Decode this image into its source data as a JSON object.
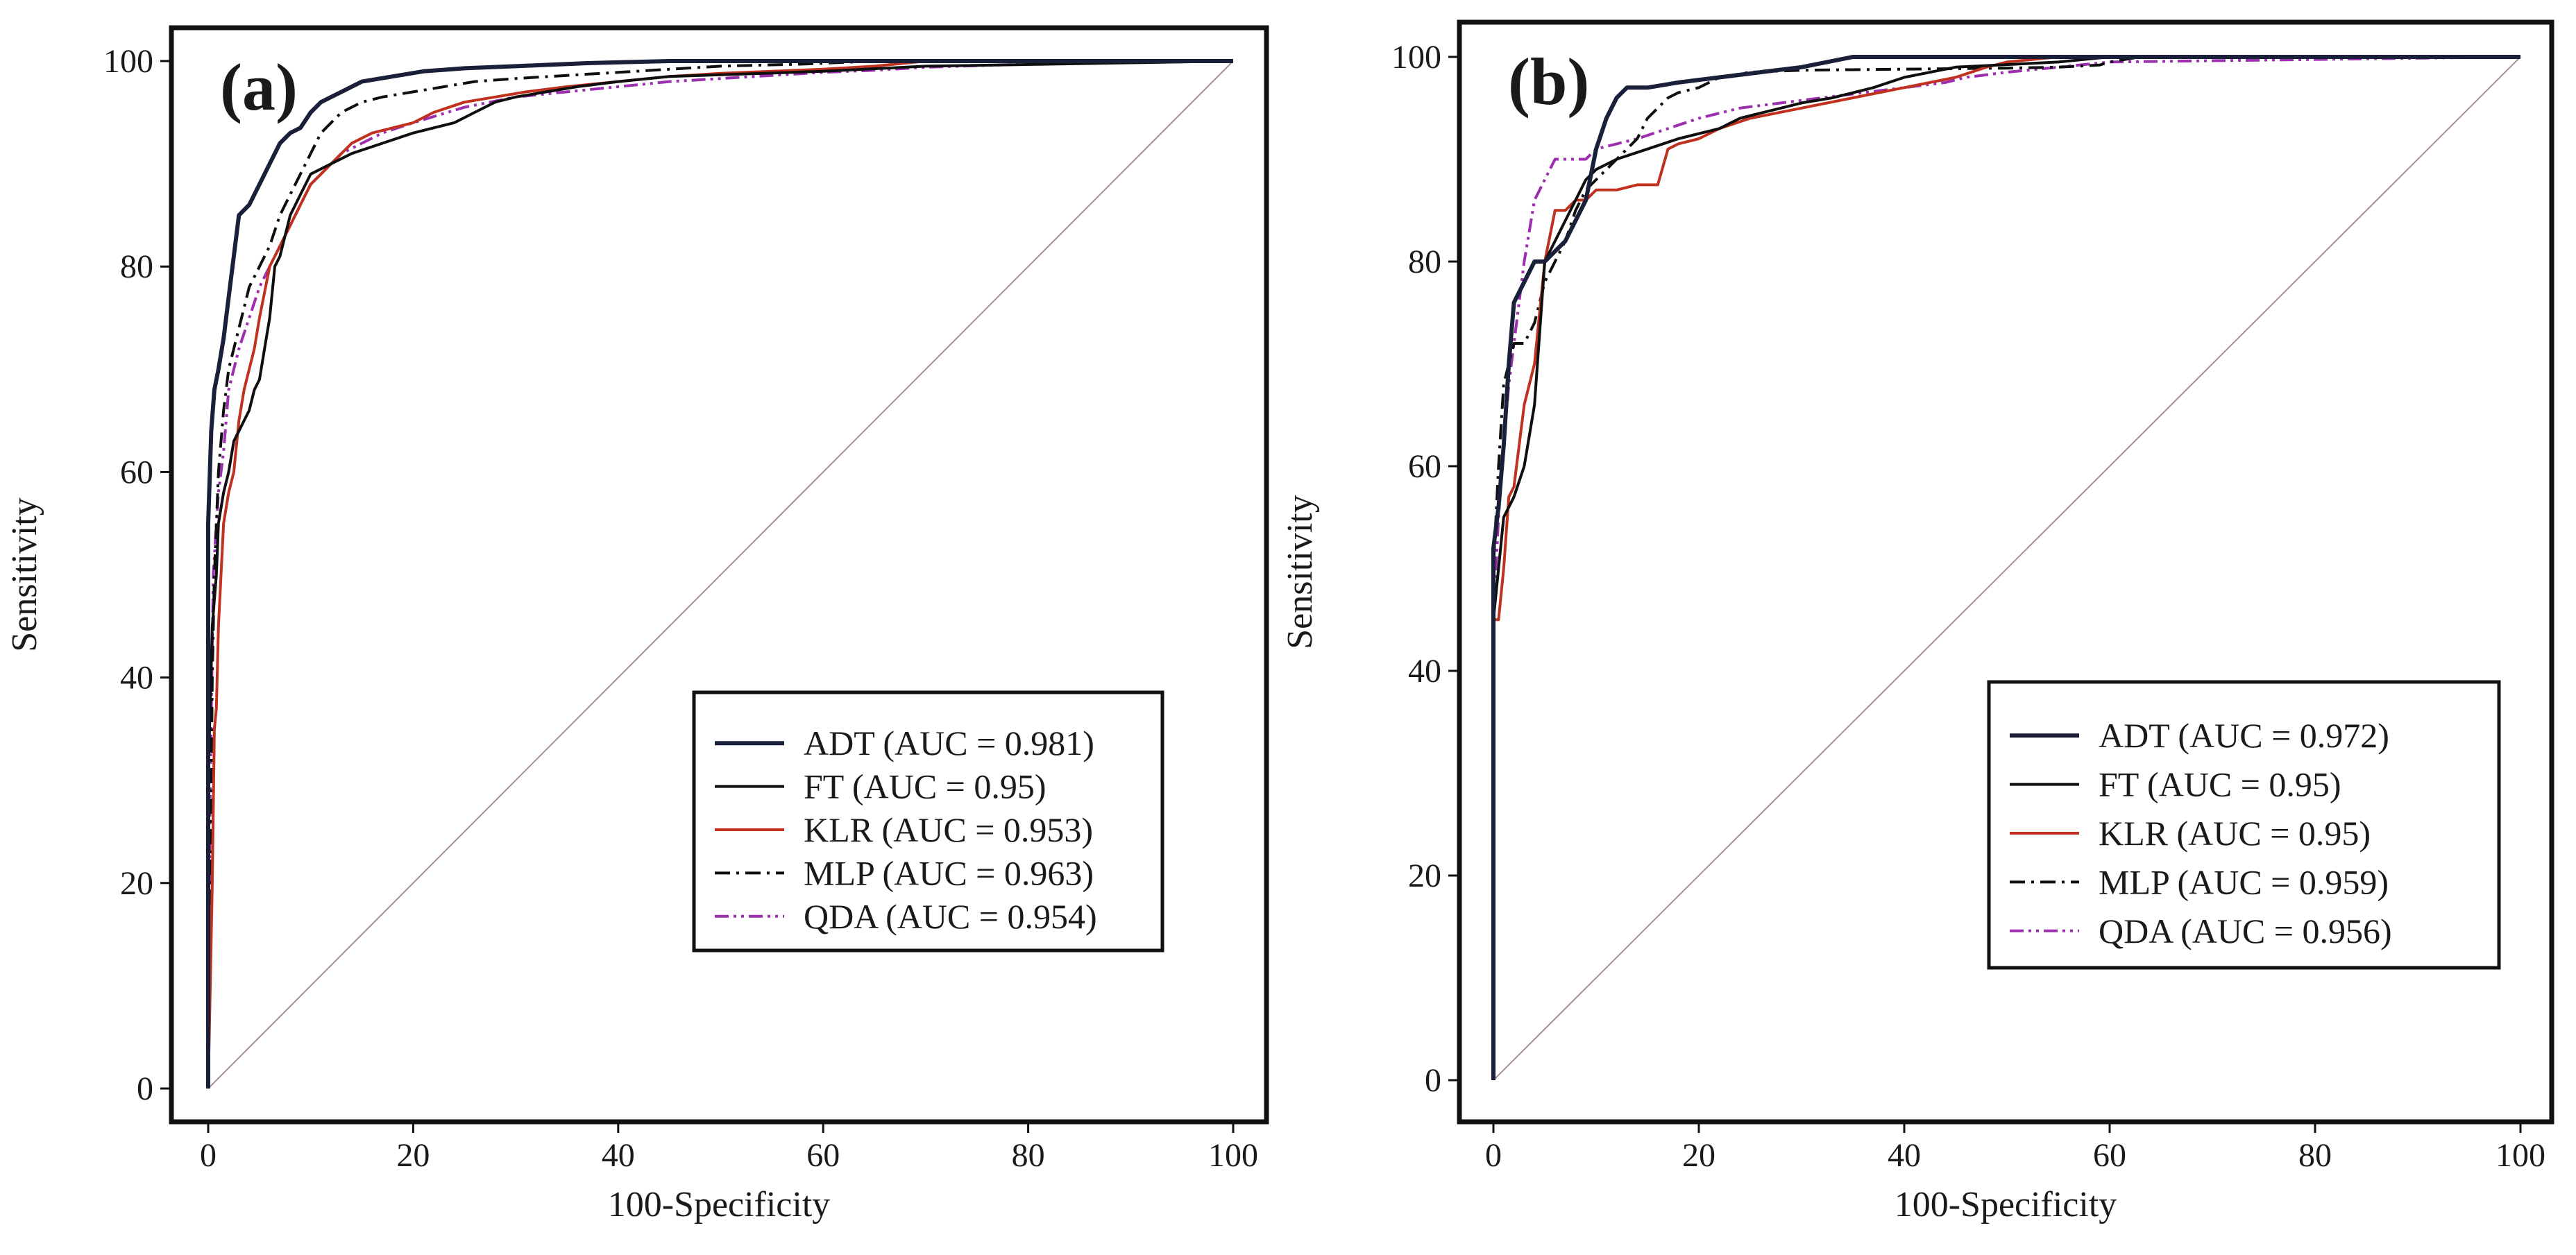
{
  "figure": {
    "background": "#ffffff"
  },
  "colors": {
    "adt": "#1a1f3a",
    "ft": "#0f0f0f",
    "klr": "#c0321f",
    "mlp": "#0f0f0f",
    "qda": "#9b2fae",
    "diagonal": "#a89090",
    "axis": "#111111"
  },
  "chart_data": [
    {
      "panel_label": "(a)",
      "type": "line",
      "title": "",
      "xlabel": "100-Specificity",
      "ylabel": "Sensitivity",
      "xlim": [
        0,
        100
      ],
      "ylim": [
        0,
        100
      ],
      "x_ticks": [
        0,
        20,
        40,
        60,
        80,
        100
      ],
      "y_ticks": [
        0,
        20,
        40,
        60,
        80,
        100
      ],
      "x_tick_labels": [
        "0",
        "20",
        "40",
        "60",
        "80",
        "100"
      ],
      "y_tick_labels": [
        "0",
        "20",
        "40",
        "60",
        "80",
        "100"
      ],
      "grid": false,
      "legend_position": "bottom-right",
      "reference_line": {
        "x": [
          0,
          100
        ],
        "y": [
          0,
          100
        ]
      },
      "series": [
        {
          "key": "adt",
          "name": "ADT (AUC = 0.981)",
          "style": "solid",
          "x": [
            0,
            0,
            0.3,
            0.6,
            1,
            1.5,
            2,
            3,
            4,
            5,
            6,
            7,
            8,
            9,
            10,
            11,
            12,
            13,
            15,
            18,
            21,
            25,
            30,
            37,
            45,
            100
          ],
          "y": [
            0,
            55,
            64,
            68,
            70,
            73,
            77,
            85,
            86,
            88,
            90,
            92,
            93,
            93.5,
            95,
            96,
            96.5,
            97,
            98,
            98.5,
            99,
            99.3,
            99.5,
            99.8,
            100,
            100
          ]
        },
        {
          "key": "ft",
          "name": "FT (AUC = 0.95)",
          "style": "solid",
          "x": [
            0,
            0,
            0.4,
            0.8,
            1,
            1.5,
            2,
            2.5,
            3,
            3.5,
            4,
            4.5,
            5,
            5.5,
            6,
            6.5,
            7,
            7.5,
            8,
            9,
            10,
            12,
            14,
            17,
            20,
            22,
            24,
            25,
            26,
            28,
            30,
            33,
            36,
            40,
            45,
            60,
            70,
            100
          ],
          "y": [
            0,
            30,
            45,
            50,
            55,
            58,
            60,
            63,
            64,
            65,
            66,
            68,
            69,
            72,
            75,
            80,
            81,
            83,
            85,
            87,
            89,
            90,
            91,
            92,
            93,
            93.5,
            94,
            94.5,
            95,
            96,
            96.5,
            97,
            97.5,
            98,
            98.5,
            99,
            99.5,
            100
          ]
        },
        {
          "key": "klr",
          "name": "KLR (AUC = 0.953)",
          "style": "solid",
          "x": [
            0,
            0.2,
            0.4,
            0.6,
            0.8,
            1,
            1.5,
            2,
            2.5,
            3,
            3.5,
            4,
            4.5,
            5,
            6,
            7,
            8,
            9,
            10,
            11,
            12,
            13,
            14,
            16,
            18,
            20,
            22,
            25,
            28,
            31,
            35,
            40,
            45,
            50,
            55,
            60,
            65,
            68,
            70,
            100
          ],
          "y": [
            0,
            10,
            20,
            35,
            37,
            45,
            55,
            58,
            60,
            65,
            68,
            70,
            72,
            75,
            80,
            82,
            84,
            86,
            88,
            89,
            90,
            91,
            92,
            93,
            93.5,
            94,
            95,
            96,
            96.5,
            97,
            97.5,
            98,
            98.5,
            98.8,
            99,
            99.2,
            99.5,
            99.8,
            100,
            100
          ]
        },
        {
          "key": "mlp",
          "name": "MLP (AUC = 0.963)",
          "style": "dashdot",
          "x": [
            0,
            0.2,
            0.4,
            0.6,
            1,
            1.5,
            2,
            3,
            4,
            5,
            6,
            7,
            8,
            9,
            10,
            11,
            12,
            13,
            14,
            15,
            17,
            20,
            23,
            26,
            30,
            35,
            40,
            45,
            50,
            58,
            65,
            100
          ],
          "y": [
            0,
            20,
            40,
            50,
            60,
            66,
            70,
            74,
            78,
            80,
            82,
            85,
            87,
            89,
            91,
            93,
            94,
            95,
            95.5,
            96,
            96.5,
            97,
            97.5,
            98,
            98.3,
            98.6,
            98.9,
            99.2,
            99.5,
            99.7,
            100,
            100
          ]
        },
        {
          "key": "qda",
          "name": "QDA (AUC = 0.954)",
          "style": "dashdotdot",
          "x": [
            0,
            0.2,
            0.5,
            0.8,
            1,
            1.5,
            2,
            3,
            4,
            5,
            6,
            7,
            8,
            9,
            10,
            11,
            12,
            13,
            15,
            17,
            20,
            25,
            30,
            35,
            40,
            45,
            50,
            55,
            60,
            65,
            70,
            80,
            100
          ],
          "y": [
            0,
            30,
            50,
            55,
            58,
            62,
            68,
            72,
            75,
            78,
            80,
            82,
            84,
            86,
            88,
            89,
            90,
            91,
            92,
            93,
            94,
            95.5,
            96.5,
            97,
            97.5,
            98,
            98.3,
            98.6,
            98.9,
            99.1,
            99.4,
            99.7,
            100
          ]
        }
      ]
    },
    {
      "panel_label": "(b)",
      "type": "line",
      "title": "",
      "xlabel": "100-Specificity",
      "ylabel": "Sensitivity",
      "xlim": [
        0,
        100
      ],
      "ylim": [
        0,
        100
      ],
      "x_ticks": [
        0,
        20,
        40,
        60,
        80,
        100
      ],
      "y_ticks": [
        0,
        20,
        40,
        60,
        80,
        100
      ],
      "x_tick_labels": [
        "0",
        "20",
        "40",
        "60",
        "80",
        "100"
      ],
      "y_tick_labels": [
        "0",
        "20",
        "40",
        "60",
        "80",
        "100"
      ],
      "grid": false,
      "legend_position": "bottom-right",
      "reference_line": {
        "x": [
          0,
          100
        ],
        "y": [
          0,
          100
        ]
      },
      "series": [
        {
          "key": "adt",
          "name": "ADT (AUC = 0.972)",
          "style": "solid",
          "x": [
            0,
            0,
            0.5,
            1,
            1.5,
            2,
            3,
            4,
            5,
            6,
            7,
            8,
            9,
            10,
            11,
            12,
            13,
            15,
            18,
            22,
            26,
            30,
            35,
            100
          ],
          "y": [
            0,
            52,
            56,
            62,
            70,
            76,
            78,
            80,
            80,
            81,
            82,
            84,
            86,
            91,
            94,
            96,
            97,
            97,
            97.5,
            98,
            98.5,
            99,
            100,
            100
          ]
        },
        {
          "key": "ft",
          "name": "FT (AUC = 0.95)",
          "style": "solid",
          "x": [
            0,
            0,
            0.5,
            1,
            2,
            3,
            4,
            5,
            6,
            7,
            8,
            9,
            10,
            12,
            15,
            18,
            22,
            24,
            26,
            28,
            30,
            33,
            37,
            40,
            45,
            55,
            60,
            100
          ],
          "y": [
            0,
            45,
            50,
            55,
            57,
            60,
            66,
            80,
            82,
            84,
            86,
            88,
            89,
            90,
            91,
            92,
            93,
            94,
            94.5,
            95,
            95.5,
            96,
            97,
            98,
            99,
            99.5,
            100,
            100
          ]
        },
        {
          "key": "klr",
          "name": "KLR (AUC = 0.95)",
          "style": "solid",
          "x": [
            0,
            0,
            0.5,
            1,
            1.5,
            2,
            3,
            4,
            5,
            6,
            7,
            8,
            9,
            10,
            12,
            14,
            16,
            17,
            18,
            20,
            22,
            25,
            30,
            35,
            40,
            45,
            48,
            50,
            55,
            59,
            60,
            100
          ],
          "y": [
            0,
            45,
            45,
            50,
            57,
            58,
            66,
            70,
            80,
            85,
            85,
            86,
            86,
            87,
            87,
            87.5,
            87.5,
            91,
            91.5,
            92,
            93,
            94,
            95,
            96,
            97,
            98,
            99,
            99.5,
            100,
            100,
            100,
            100
          ]
        },
        {
          "key": "mlp",
          "name": "MLP (AUC = 0.959)",
          "style": "dashdot",
          "x": [
            0,
            0,
            0.5,
            1,
            1.5,
            2,
            3,
            4,
            5,
            6,
            7,
            8,
            9,
            10,
            11,
            12,
            13,
            14,
            15,
            16,
            17,
            18,
            20,
            22,
            25,
            30,
            40,
            50,
            55,
            59,
            60,
            63,
            100
          ],
          "y": [
            0,
            50,
            60,
            68,
            70,
            72,
            72,
            74,
            78,
            80,
            82,
            85,
            87,
            88,
            89,
            90,
            91,
            92,
            94,
            95,
            96,
            96.5,
            97,
            98,
            98.5,
            98.7,
            98.8,
            98.9,
            99,
            99.2,
            99.5,
            100,
            100
          ]
        },
        {
          "key": "qda",
          "name": "QDA (AUC = 0.956)",
          "style": "dashdotdot",
          "x": [
            0,
            0,
            0.5,
            1,
            1.5,
            2,
            3,
            4,
            5,
            6,
            7,
            8,
            9,
            10,
            12,
            14,
            17,
            20,
            24,
            28,
            32,
            36,
            40,
            44,
            46,
            50,
            55,
            60,
            100
          ],
          "y": [
            0,
            45,
            55,
            62,
            68,
            72,
            80,
            86,
            88,
            90,
            90,
            90,
            90,
            91,
            91.5,
            92,
            93,
            94,
            95,
            95.5,
            96,
            96.5,
            97,
            97.5,
            98,
            98.5,
            99,
            99.5,
            100
          ]
        }
      ]
    }
  ]
}
